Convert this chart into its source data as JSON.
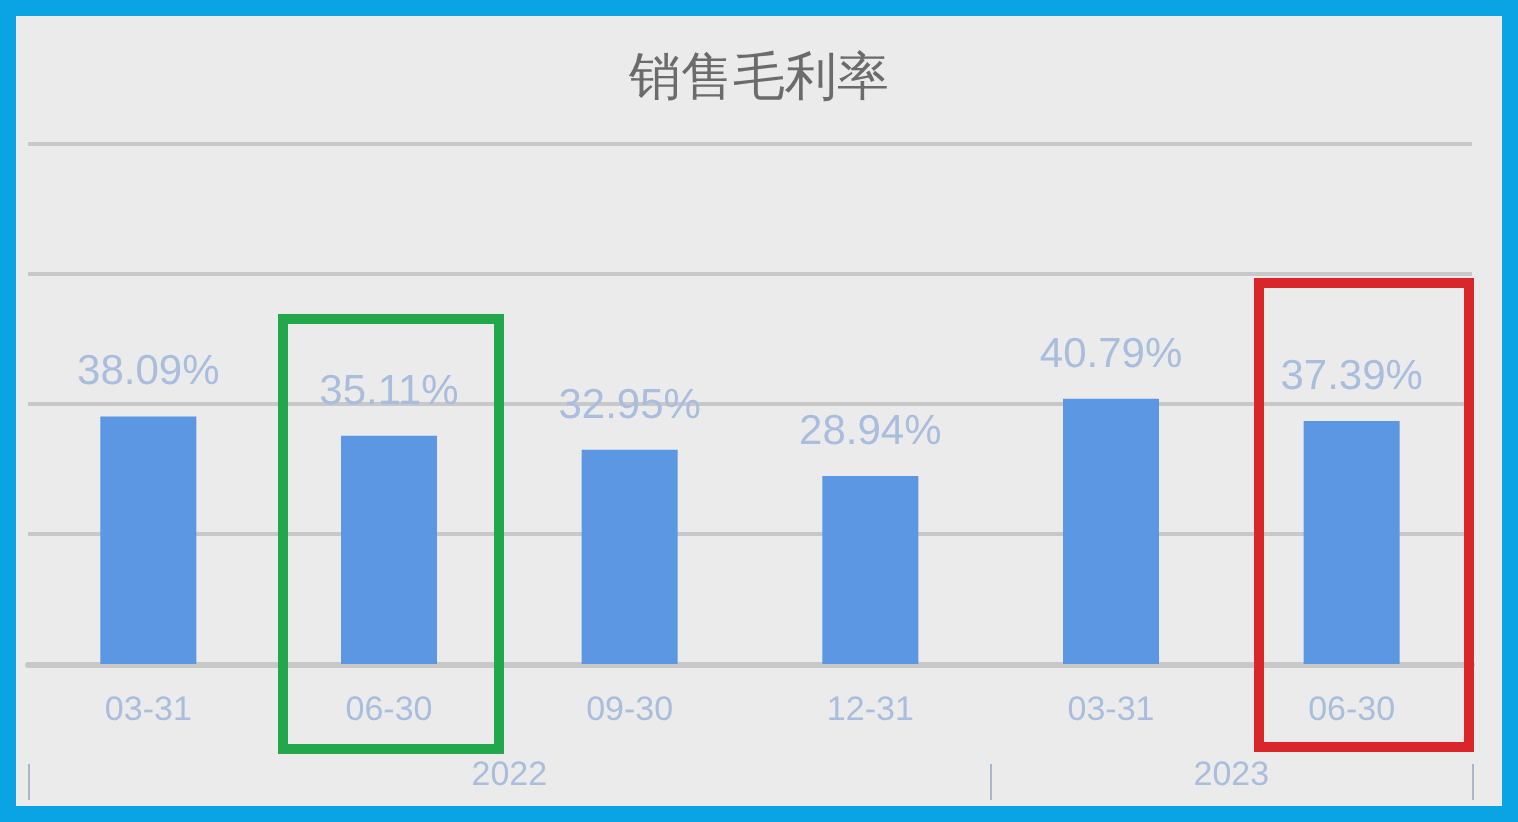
{
  "chart_data": {
    "type": "bar",
    "title": "销售毛利率",
    "categories": [
      "03-31",
      "06-30",
      "09-30",
      "12-31",
      "03-31",
      "06-30"
    ],
    "values": [
      38.09,
      35.11,
      32.95,
      28.94,
      40.79,
      37.39
    ],
    "value_labels": [
      "38.09%",
      "35.11%",
      "32.95%",
      "28.94%",
      "40.79%",
      "37.39%"
    ],
    "color": "#5b97e3",
    "ylim": [
      0,
      80
    ],
    "yticks": [
      0,
      20,
      40,
      60,
      80
    ],
    "grid": "y",
    "tick_labels": "x",
    "annotations": [
      "2022",
      "2023"
    ]
  }
}
